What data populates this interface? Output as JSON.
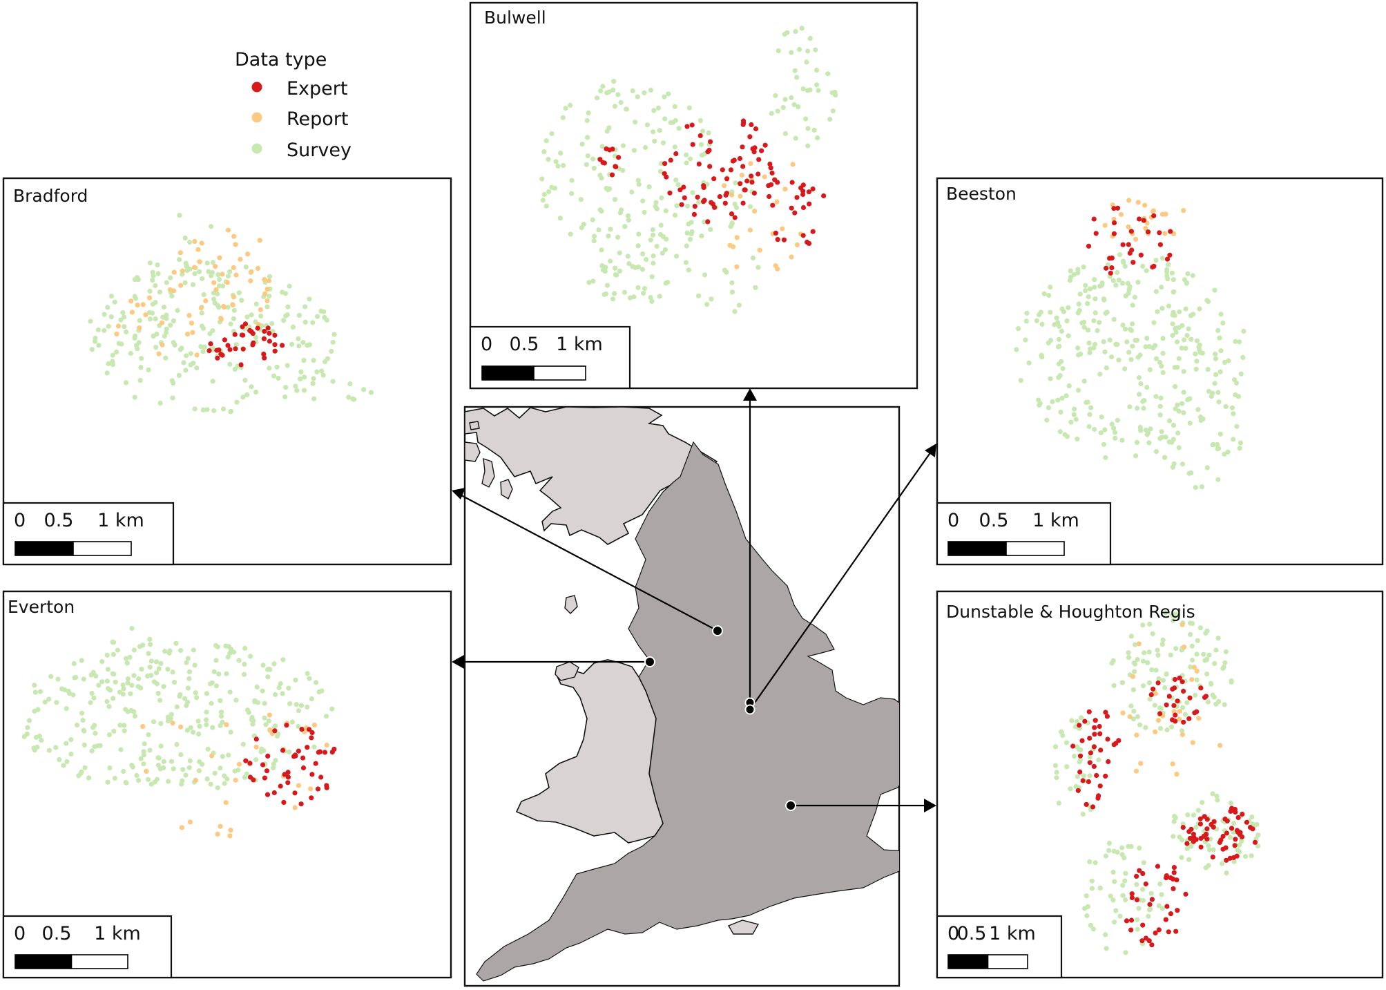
{
  "legend": {
    "title": "Data type",
    "items": [
      {
        "key": "expert",
        "label": "Expert",
        "color": "#d7191c"
      },
      {
        "key": "report",
        "label": "Report",
        "color": "#fdc980"
      },
      {
        "key": "survey",
        "label": "Survey",
        "color": "#c7e8b0"
      }
    ]
  },
  "scale_labels": {
    "zero": "0",
    "half": "0.5",
    "full": "1 km"
  },
  "colors": {
    "england": "#aca6a6",
    "scotland_wales": "#d9d3d3",
    "outline": "#111111"
  },
  "panels": [
    {
      "id": "bulwell",
      "name": "Bulwell"
    },
    {
      "id": "bradford",
      "name": "Bradford"
    },
    {
      "id": "beeston",
      "name": "Beeston"
    },
    {
      "id": "everton",
      "name": "Everton"
    },
    {
      "id": "dunstable",
      "name": "Dunstable & Houghton Regis"
    }
  ]
}
